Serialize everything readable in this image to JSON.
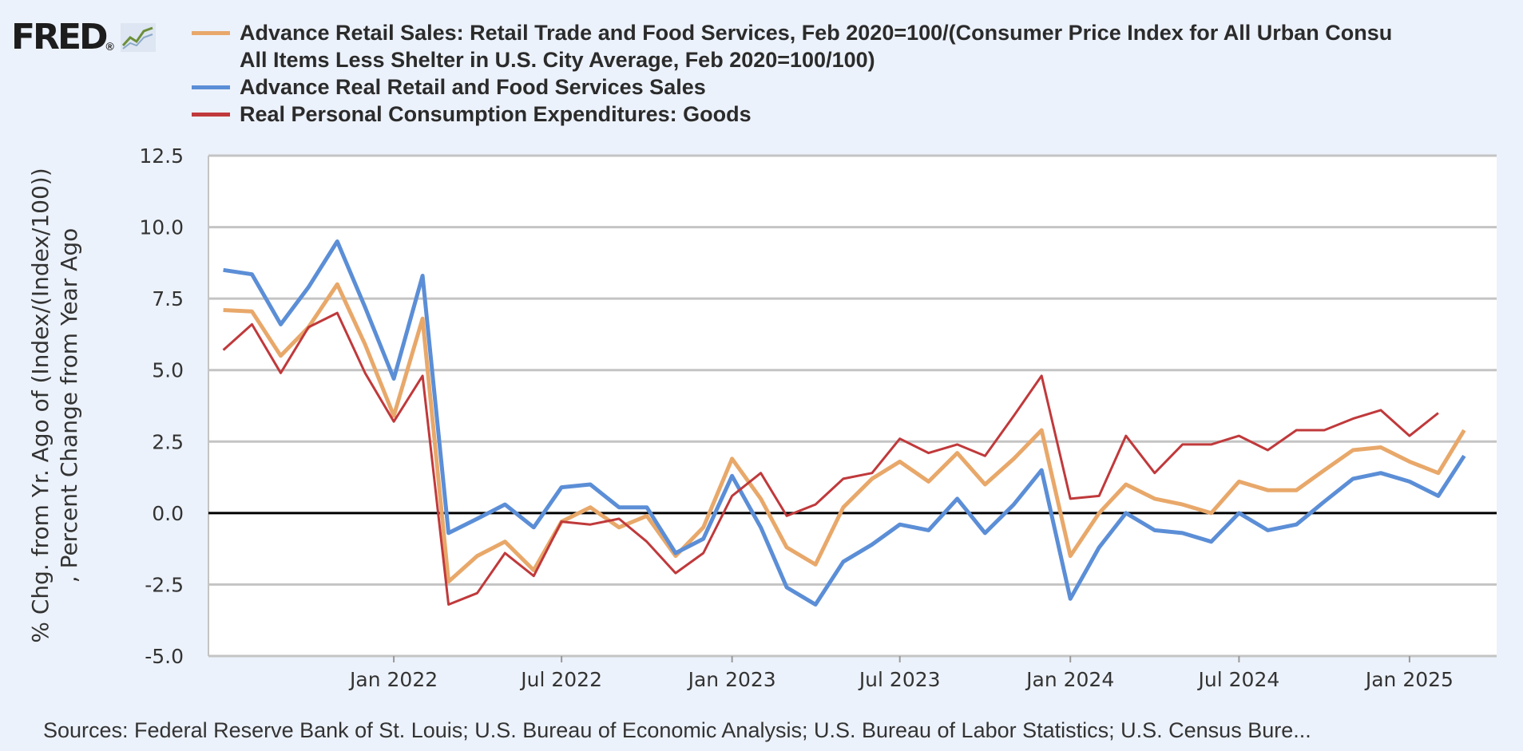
{
  "logo": {
    "text": "FRED",
    "trademark": "®",
    "icon": "line-chart-icon"
  },
  "legend": [
    {
      "name": "Advance Retail Sales: Retail Trade and Food Services, Feb 2020=100/(Consumer Price Index for All Urban Consu\nAll Items Less Shelter in U.S. City Average, Feb 2020=100/100)",
      "color": "#E8A86A"
    },
    {
      "name": "Advance Real Retail and Food Services Sales",
      "color": "#5B8ED6"
    },
    {
      "name": "Real Personal Consumption Expenditures: Goods",
      "color": "#C0393B"
    }
  ],
  "sources": "Sources: Federal Reserve Bank of St. Louis; U.S. Bureau of Economic Analysis; U.S. Bureau of Labor Statistics; U.S. Census Bure...",
  "chart_data": {
    "type": "line",
    "ylabel_lines": [
      "% Chg. from Yr. Ago of (Index/(Index/100))",
      ", Percent Change from Year Ago"
    ],
    "ylim": [
      -5,
      12.5
    ],
    "yticks": [
      -5,
      -2.5,
      0,
      2.5,
      5,
      7.5,
      10,
      12.5
    ],
    "ytick_labels": [
      "-5.0",
      "-2.5",
      "0.0",
      "2.5",
      "5.0",
      "7.5",
      "10.0",
      "12.5"
    ],
    "xticks": [
      "Jan 2022",
      "Jul 2022",
      "Jan 2023",
      "Jul 2023",
      "Jan 2024",
      "Jul 2024",
      "Jan 2025"
    ],
    "zero_line": true,
    "grid": "horizontal",
    "x": [
      "2021-07",
      "2021-08",
      "2021-09",
      "2021-10",
      "2021-11",
      "2021-12",
      "2022-01",
      "2022-02",
      "2022-03",
      "2022-04",
      "2022-05",
      "2022-06",
      "2022-07",
      "2022-08",
      "2022-09",
      "2022-10",
      "2022-11",
      "2022-12",
      "2023-01",
      "2023-02",
      "2023-03",
      "2023-04",
      "2023-05",
      "2023-06",
      "2023-07",
      "2023-08",
      "2023-09",
      "2023-10",
      "2023-11",
      "2023-12",
      "2024-01",
      "2024-02",
      "2024-03",
      "2024-04",
      "2024-05",
      "2024-06",
      "2024-07",
      "2024-08",
      "2024-09",
      "2024-10",
      "2024-11",
      "2024-12",
      "2025-01",
      "2025-02",
      "2025-03"
    ],
    "series": [
      {
        "name": "Advance Retail Sales: Retail Trade and Food Services, Feb 2020=100/(Consumer Price Index for All Urban Consu All Items Less Shelter in U.S. City Average, Feb 2020=100/100)",
        "color": "#E8A86A",
        "values": [
          7.1,
          7.05,
          5.5,
          6.5,
          8.0,
          5.9,
          3.4,
          6.8,
          -2.4,
          -1.5,
          -1.0,
          -2.0,
          -0.3,
          0.2,
          -0.5,
          -0.1,
          -1.5,
          -0.5,
          1.9,
          0.5,
          -1.2,
          -1.8,
          0.2,
          1.2,
          1.8,
          1.1,
          2.1,
          1.0,
          1.9,
          2.9,
          -1.5,
          0.0,
          1.0,
          0.5,
          0.3,
          0.0,
          1.1,
          0.8,
          0.8,
          1.5,
          2.2,
          2.3,
          1.8,
          1.4,
          2.9
        ]
      },
      {
        "name": "Advance Real Retail and Food Services Sales",
        "color": "#5B8ED6",
        "values": [
          8.5,
          8.35,
          6.6,
          7.9,
          9.5,
          7.2,
          4.7,
          8.3,
          -0.7,
          -0.2,
          0.3,
          -0.5,
          0.9,
          1.0,
          0.2,
          0.2,
          -1.4,
          -0.9,
          1.3,
          -0.5,
          -2.6,
          -3.2,
          -1.7,
          -1.1,
          -0.4,
          -0.6,
          0.5,
          -0.7,
          0.3,
          1.5,
          -3.0,
          -1.2,
          0.0,
          -0.6,
          -0.7,
          -1.0,
          0.0,
          -0.6,
          -0.4,
          0.4,
          1.2,
          1.4,
          1.1,
          0.6,
          2.0
        ]
      },
      {
        "name": "Real Personal Consumption Expenditures: Goods",
        "color": "#C0393B",
        "values": [
          5.7,
          6.6,
          4.9,
          6.5,
          7.0,
          4.9,
          3.2,
          4.8,
          -3.2,
          -2.8,
          -1.4,
          -2.2,
          -0.3,
          -0.4,
          -0.2,
          -1.0,
          -2.1,
          -1.4,
          0.6,
          1.4,
          -0.1,
          0.3,
          1.2,
          1.4,
          2.6,
          2.1,
          2.4,
          2.0,
          3.4,
          4.8,
          0.5,
          0.6,
          2.7,
          1.4,
          2.4,
          2.4,
          2.7,
          2.2,
          2.9,
          2.9,
          3.3,
          3.6,
          2.7,
          3.5,
          null
        ]
      }
    ]
  }
}
